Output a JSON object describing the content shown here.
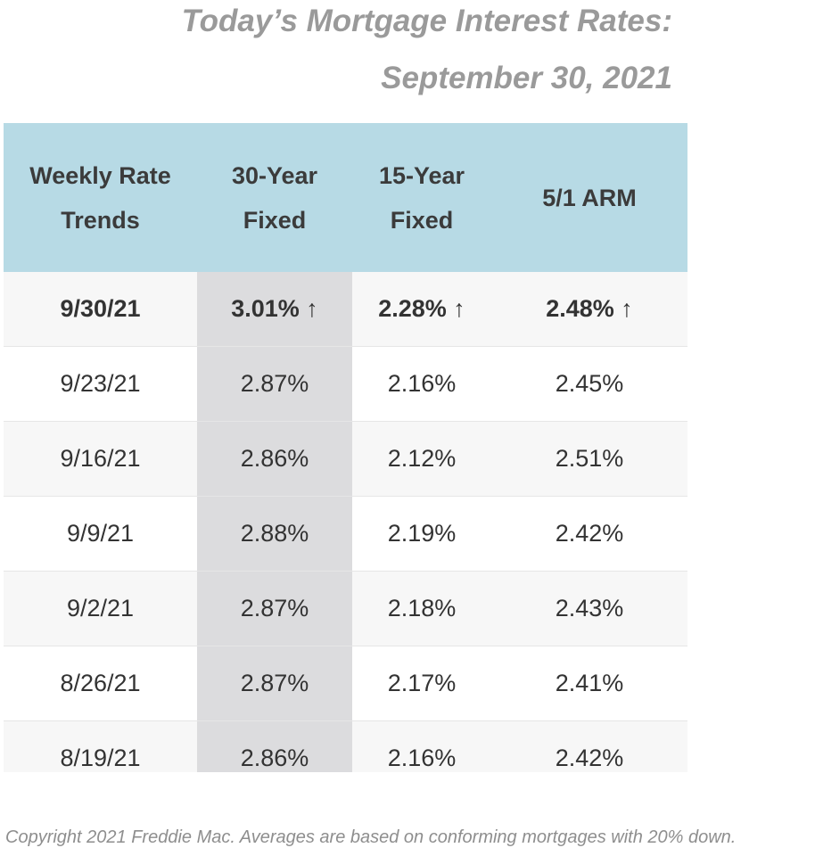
{
  "title": {
    "line1": "Today’s Mortgage Interest Rates:",
    "line2": "September 30, 2021"
  },
  "table": {
    "headers": {
      "col1_line1": "Weekly Rate",
      "col1_line2": "Trends",
      "col2_line1": "30-Year",
      "col2_line2": "Fixed",
      "col3_line1": "15-Year",
      "col3_line2": "Fixed",
      "col4": "5/1 ARM"
    },
    "latest": {
      "date": "9/30/21",
      "fixed30": "3.01%",
      "fixed15": "2.28%",
      "arm51": "2.48%",
      "trend_arrow": "↑"
    },
    "rows": [
      {
        "date": "9/23/21",
        "fixed30": "2.87%",
        "fixed15": "2.16%",
        "arm51": "2.45%"
      },
      {
        "date": "9/16/21",
        "fixed30": "2.86%",
        "fixed15": "2.12%",
        "arm51": "2.51%"
      },
      {
        "date": "9/9/21",
        "fixed30": "2.88%",
        "fixed15": "2.19%",
        "arm51": "2.42%"
      },
      {
        "date": "9/2/21",
        "fixed30": "2.87%",
        "fixed15": "2.18%",
        "arm51": "2.43%"
      },
      {
        "date": "8/26/21",
        "fixed30": "2.87%",
        "fixed15": "2.17%",
        "arm51": "2.41%"
      },
      {
        "date": "8/19/21",
        "fixed30": "2.86%",
        "fixed15": "2.16%",
        "arm51": "2.42%"
      }
    ]
  },
  "footnote": "Copyright 2021 Freddie Mac. Averages are based on conforming mortgages with 20% down.",
  "colors": {
    "header_bg": "#b7dae5",
    "highlight_col_bg": "#dcdcde",
    "title_color": "#9a9a9a"
  }
}
